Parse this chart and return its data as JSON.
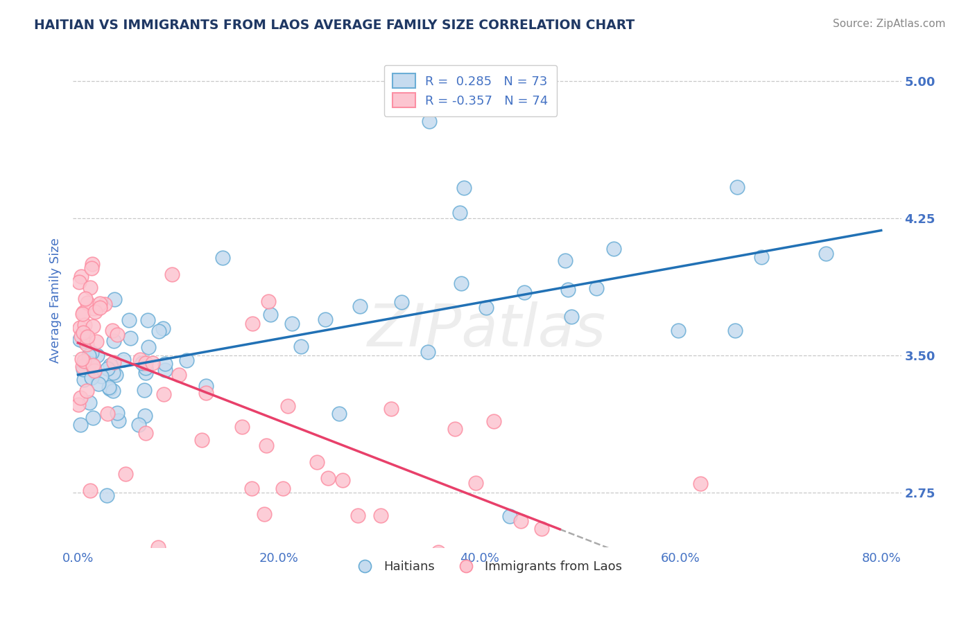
{
  "title": "HAITIAN VS IMMIGRANTS FROM LAOS AVERAGE FAMILY SIZE CORRELATION CHART",
  "source": "Source: ZipAtlas.com",
  "ylabel": "Average Family Size",
  "xlabel_ticks": [
    "0.0%",
    "20.0%",
    "40.0%",
    "60.0%",
    "80.0%"
  ],
  "xlabel_vals": [
    0.0,
    0.2,
    0.4,
    0.6,
    0.8
  ],
  "yticks": [
    2.75,
    3.5,
    4.25,
    5.0
  ],
  "ylim": [
    2.45,
    5.15
  ],
  "xlim": [
    -0.005,
    0.82
  ],
  "R_haitians": 0.285,
  "N_haitians": 73,
  "R_laos": -0.357,
  "N_laos": 74,
  "blue_color": "#6BAED6",
  "pink_color": "#FC8FA3",
  "blue_fill": "#C6DBEF",
  "pink_fill": "#FCC5D0",
  "title_color": "#1F3864",
  "axis_label_color": "#4472C4",
  "trend_blue": "#2171B5",
  "trend_pink": "#E8406A",
  "background": "#FFFFFF",
  "grid_color": "#BBBBBB",
  "watermark_color": "#DDDDDD",
  "watermark_alpha": 0.5
}
